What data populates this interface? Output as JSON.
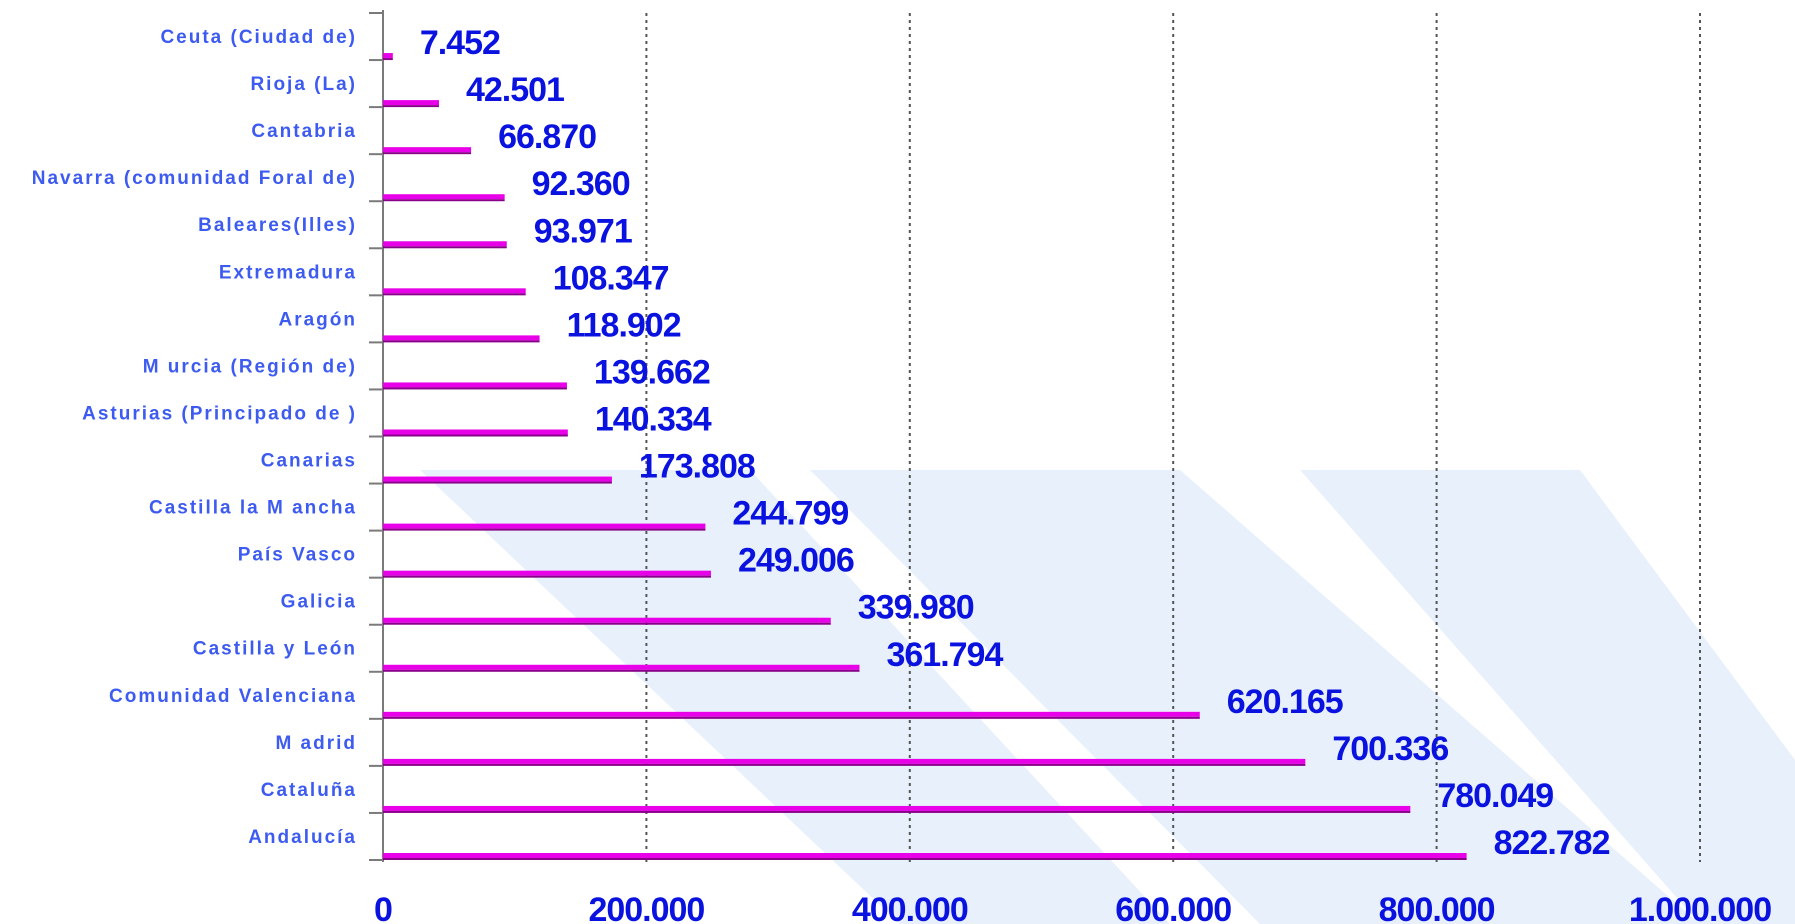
{
  "chart_data": {
    "type": "bar",
    "orientation": "horizontal",
    "categories": [
      "Ceuta (Ciudad de)",
      "Rioja (La)",
      "Cantabria",
      "Navarra (comunidad Foral de)",
      "Baleares(Illes)",
      "Extremadura",
      "Aragón",
      "M urcia (Región de)",
      "Asturias (Principado de )",
      "Canarias",
      "Castilla la M ancha",
      "País Vasco",
      "Galicia",
      "Castilla y León",
      "Comunidad Valenciana",
      "M adrid",
      "Cataluña",
      "Andalucía"
    ],
    "values": [
      7452,
      42501,
      66870,
      92360,
      93971,
      108347,
      118902,
      139662,
      140334,
      173808,
      244799,
      249006,
      339980,
      361794,
      620165,
      700336,
      780049,
      822782
    ],
    "value_labels": [
      "7.452",
      "42.501",
      "66.870",
      "92.360",
      "93.971",
      "108.347",
      "118.902",
      "139.662",
      "140.334",
      "173.808",
      "244.799",
      "249.006",
      "339.980",
      "361.794",
      "620.165",
      "700.336",
      "780.049",
      "822.782"
    ],
    "xlim": [
      0,
      1000000
    ],
    "x_ticks": [
      0,
      200000,
      400000,
      600000,
      800000,
      1000000
    ],
    "x_tick_labels": [
      "0",
      "200.000",
      "400.000",
      "600.000",
      "800.000",
      "1.000.000"
    ],
    "grid": "vertical dotted",
    "title": "",
    "xlabel": "",
    "ylabel": ""
  },
  "colors": {
    "bar": "#e800e8",
    "bar_shadow": "#8a008a",
    "value_label": "#0a12e0",
    "category_label": "#3d5bf0",
    "grid": "#555555",
    "axis": "#7a7a7a",
    "watermark": "#e8f0fc"
  }
}
